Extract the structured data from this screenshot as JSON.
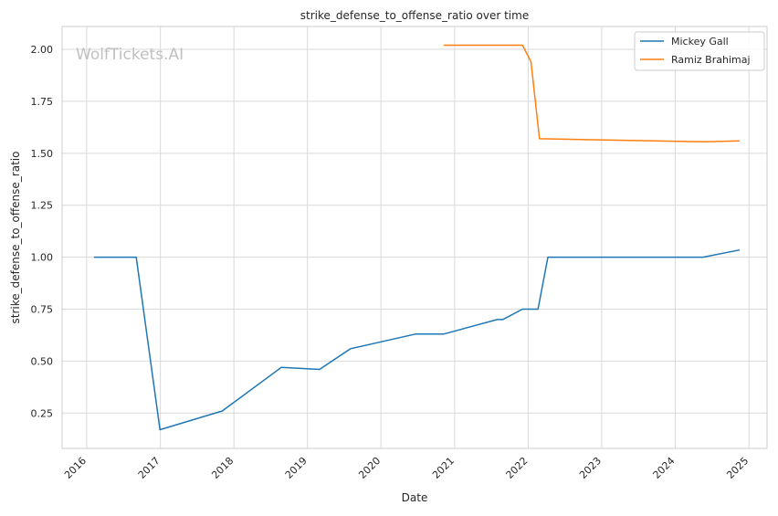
{
  "chart_data": {
    "type": "line",
    "title": "strike_defense_to_offense_ratio over time",
    "xlabel": "Date",
    "ylabel": "strike_defense_to_offense_ratio",
    "watermark": "WolfTickets.AI",
    "x_scale": "time",
    "xlim": [
      "2015-09-01",
      "2025-04-01"
    ],
    "ylim": [
      0.08,
      2.11
    ],
    "x_ticks": [
      "2016",
      "2017",
      "2018",
      "2019",
      "2020",
      "2021",
      "2022",
      "2023",
      "2024",
      "2025"
    ],
    "y_ticks": [
      "0.25",
      "0.50",
      "0.75",
      "1.00",
      "1.25",
      "1.50",
      "1.75",
      "2.00"
    ],
    "grid": true,
    "legend_position": "top-right",
    "series": [
      {
        "name": "Mickey Gall",
        "color": "#1f77b4",
        "points": [
          {
            "x": "2016-02-06",
            "y": 1.0
          },
          {
            "x": "2016-09-03",
            "y": 1.0
          },
          {
            "x": "2016-12-30",
            "y": 0.17
          },
          {
            "x": "2017-11-04",
            "y": 0.26
          },
          {
            "x": "2018-08-25",
            "y": 0.47
          },
          {
            "x": "2019-03-02",
            "y": 0.46
          },
          {
            "x": "2019-08-03",
            "y": 0.56
          },
          {
            "x": "2020-06-20",
            "y": 0.63
          },
          {
            "x": "2020-11-07",
            "y": 0.63
          },
          {
            "x": "2021-07-31",
            "y": 0.7
          },
          {
            "x": "2021-08-28",
            "y": 0.7
          },
          {
            "x": "2021-12-04",
            "y": 0.75
          },
          {
            "x": "2022-02-19",
            "y": 0.75
          },
          {
            "x": "2022-04-09",
            "y": 1.0
          },
          {
            "x": "2024-05-18",
            "y": 1.0
          },
          {
            "x": "2024-11-16",
            "y": 1.035
          }
        ]
      },
      {
        "name": "Ramiz Brahimaj",
        "color": "#ff7f0e",
        "points": [
          {
            "x": "2020-11-07",
            "y": 2.02
          },
          {
            "x": "2021-12-04",
            "y": 2.02
          },
          {
            "x": "2022-01-15",
            "y": 1.94
          },
          {
            "x": "2022-02-26",
            "y": 1.57
          },
          {
            "x": "2024-05-25",
            "y": 1.555
          },
          {
            "x": "2024-11-16",
            "y": 1.56
          }
        ]
      }
    ]
  }
}
